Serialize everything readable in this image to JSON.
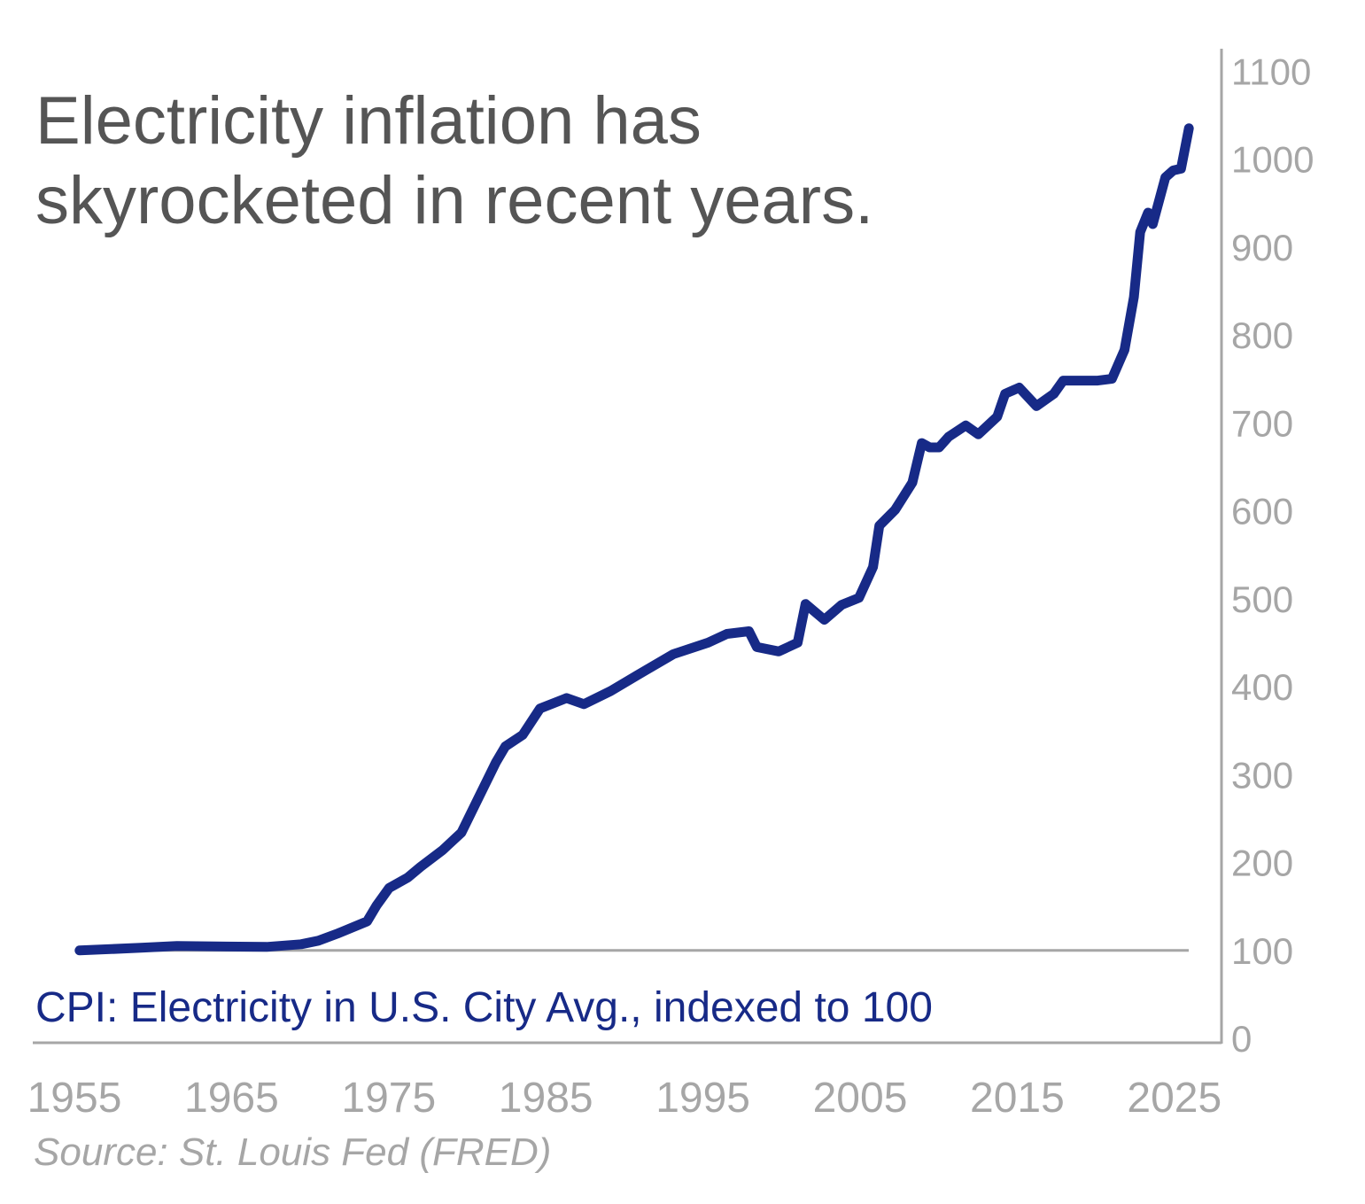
{
  "colors": {
    "line": "#172a87",
    "axis": "#a6a6a6",
    "title": "#555555"
  },
  "chart_data": {
    "type": "line",
    "title": "Electricity inflation has skyrocketed in recent years.",
    "series_label": "CPI: Electricity in U.S. City Avg., indexed to 100",
    "source": "Source: St. Louis Fed (FRED)",
    "xlabel": "",
    "ylabel": "",
    "xlim": [
      1955,
      2025
    ],
    "ylim": [
      0,
      1100
    ],
    "y_axis_position": "right",
    "grid": false,
    "reference_line": 100,
    "x_ticks": [
      "1955",
      "1965",
      "1975",
      "1985",
      "1995",
      "2005",
      "2015",
      "2025"
    ],
    "x_tick_values": [
      1955,
      1965,
      1975,
      1985,
      1995,
      2005,
      2015,
      2025
    ],
    "y_ticks": [
      "0",
      "100",
      "200",
      "300",
      "400",
      "500",
      "600",
      "700",
      "800",
      "900",
      "1000",
      "1100"
    ],
    "y_tick_values": [
      0,
      100,
      200,
      300,
      400,
      500,
      600,
      700,
      800,
      900,
      1000,
      1100
    ],
    "series": [
      {
        "name": "CPI: Electricity in U.S. City Avg., indexed to 100",
        "x": [
          1955.1,
          1959,
          1961.3,
          1967,
          1969.2,
          1970.3,
          1971.5,
          1973.4,
          1974,
          1974.8,
          1976,
          1976.8,
          1978.2,
          1979.4,
          1980.5,
          1981.6,
          1982.2,
          1983.3,
          1984.4,
          1986.1,
          1987.2,
          1988.9,
          1990.6,
          1992.9,
          1995.1,
          1996.3,
          1997.7,
          1998.2,
          1999.6,
          2000.8,
          2001.3,
          2002.5,
          2003.6,
          2004.7,
          2005.6,
          2006,
          2007,
          2008.1,
          2008.7,
          2009.2,
          2009.8,
          2010.4,
          2011.5,
          2012.3,
          2013.5,
          2014,
          2014.9,
          2016,
          2017.1,
          2017.7,
          2019.9,
          2020.8,
          2021.6,
          2022.2,
          2022.6,
          2023.1,
          2023.4,
          2024.2,
          2024.7,
          2025.2,
          2025.7
        ],
        "values": [
          100,
          103,
          105,
          104,
          107,
          111,
          119,
          133,
          151,
          171,
          183,
          195,
          214,
          234,
          274,
          314,
          332,
          345,
          375,
          387,
          380,
          395,
          413,
          437,
          450,
          460,
          463,
          445,
          440,
          450,
          494,
          476,
          493,
          501,
          536,
          583,
          601,
          632,
          677,
          672,
          672,
          684,
          697,
          687,
          707,
          733,
          740,
          719,
          733,
          748,
          748,
          750,
          783,
          843,
          917,
          939,
          926,
          979,
          987,
          989,
          1035
        ]
      }
    ]
  }
}
